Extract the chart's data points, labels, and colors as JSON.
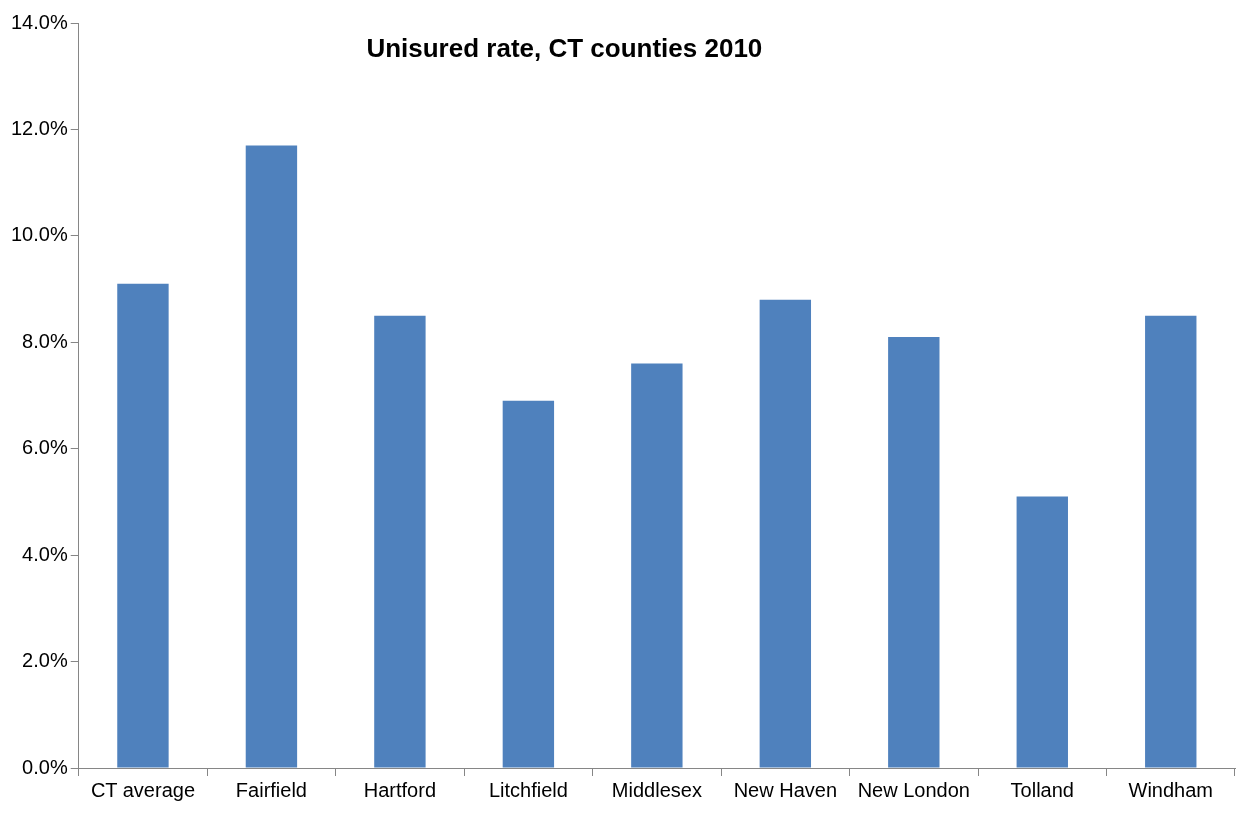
{
  "chart_data": {
    "type": "bar",
    "title": "Unisured rate, CT counties 2010",
    "categories": [
      "CT average",
      "Fairfield",
      "Hartford",
      "Litchfield",
      "Middlesex",
      "New Haven",
      "New London",
      "Tolland",
      "Windham"
    ],
    "values": [
      9.1,
      11.7,
      8.5,
      6.9,
      7.6,
      8.8,
      8.1,
      5.1,
      8.5
    ],
    "color": "#4f81bd",
    "ylim": [
      0,
      14
    ],
    "yticks": [
      {
        "value": 0,
        "label": "0.0%"
      },
      {
        "value": 2,
        "label": "2.0%"
      },
      {
        "value": 4,
        "label": "4.0%"
      },
      {
        "value": 6,
        "label": "6.0%"
      },
      {
        "value": 8,
        "label": "8.0%"
      },
      {
        "value": 10,
        "label": "10.0%"
      },
      {
        "value": 12,
        "label": "12.0%"
      },
      {
        "value": 14,
        "label": "14.0%"
      }
    ],
    "grid": false,
    "legend": false
  }
}
